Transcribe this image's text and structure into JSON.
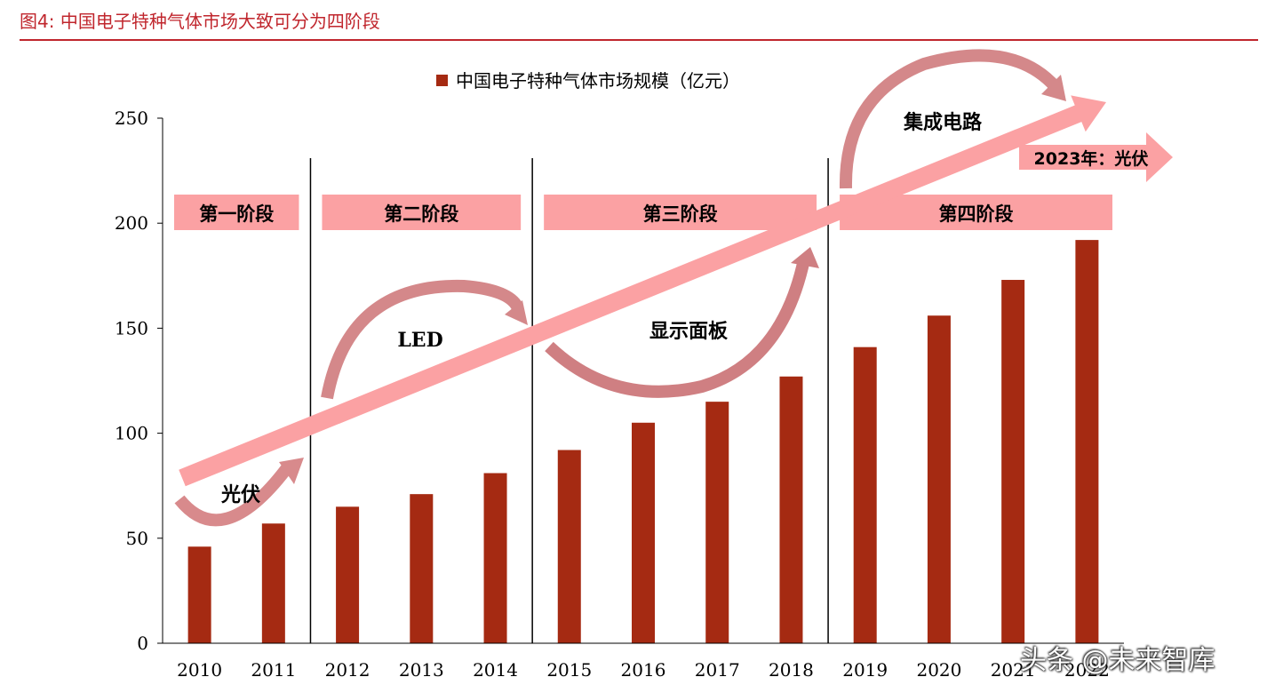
{
  "figure": {
    "title": "图4:   中国电子特种气体市场大致可分为四阶段",
    "accent_color": "#c0262d"
  },
  "chart_data": {
    "type": "bar",
    "categories": [
      "2010",
      "2011",
      "2012",
      "2013",
      "2014",
      "2015",
      "2016",
      "2017",
      "2018",
      "2019",
      "2020",
      "2021",
      "2022"
    ],
    "series": [
      {
        "name": "中国电子特种气体市场规模（亿元）",
        "values": [
          46,
          57,
          65,
          71,
          81,
          92,
          105,
          115,
          127,
          141,
          156,
          173,
          192
        ],
        "color": "#a52a12"
      }
    ],
    "ylim": [
      0,
      250
    ],
    "yticks": [
      0,
      50,
      100,
      150,
      200,
      250
    ],
    "legend_position": "top-center",
    "stages": [
      {
        "label": "第一阶段",
        "from": "2010",
        "to": "2011"
      },
      {
        "label": "第二阶段",
        "from": "2012",
        "to": "2014"
      },
      {
        "label": "第三阶段",
        "from": "2015",
        "to": "2018"
      },
      {
        "label": "第四阶段",
        "from": "2019",
        "to": "2022"
      }
    ],
    "annotations": {
      "pv": "光伏",
      "led": "LED",
      "display": "显示面板",
      "ic": "集成电路",
      "pv2023": "2023年：光伏"
    }
  },
  "watermark": "头条 @未来智库"
}
